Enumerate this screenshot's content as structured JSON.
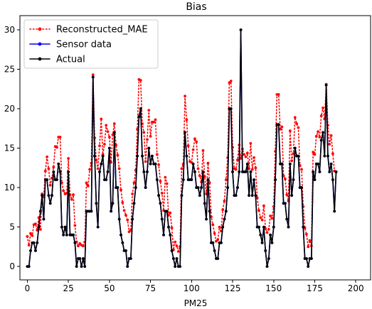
{
  "chart_data": {
    "type": "line",
    "title": "Bias",
    "xlabel": "PM25",
    "ylabel": "",
    "xlim": [
      -4.5,
      209
    ],
    "ylim": [
      -1.7,
      31.8
    ],
    "xticks": [
      0,
      25,
      50,
      75,
      100,
      125,
      150,
      175,
      200
    ],
    "yticks": [
      0,
      5,
      10,
      15,
      20,
      25,
      30
    ],
    "legend": {
      "position": "top-left",
      "entries": [
        "Reconstructed_MAE",
        "Sensor data",
        "Actual"
      ]
    },
    "series": [
      {
        "name": "Reconstructed_MAE",
        "color": "#ff0000",
        "linestyle": "dotted",
        "marker": "circle",
        "x_start": 0,
        "values": [
          3.8,
          2.7,
          4.2,
          3.9,
          5.3,
          5.4,
          4.6,
          6.2,
          4.7,
          9.2,
          8.8,
          12.1,
          13.9,
          12.4,
          10.3,
          11.2,
          12.6,
          15.2,
          15.1,
          16.4,
          16.4,
          10.6,
          9.6,
          9.2,
          9.3,
          13.7,
          9.1,
          8.5,
          9.1,
          5.2,
          3.1,
          2.6,
          2.9,
          2.7,
          2.6,
          3.1,
          10.6,
          10.2,
          12.3,
          13.1,
          24.3,
          16.3,
          13.5,
          12.4,
          15.3,
          18.7,
          14.2,
          15.5,
          17.9,
          17.1,
          16.4,
          13.2,
          16.7,
          18.1,
          15.4,
          14.1,
          12.4,
          9.7,
          8.1,
          7.1,
          6.5,
          5.9,
          4.4,
          4.6,
          9.2,
          10.6,
          12.2,
          17.4,
          23.7,
          23.6,
          18.1,
          17.0,
          13.3,
          16.1,
          19.8,
          16.5,
          18.3,
          18.3,
          18.6,
          14.2,
          12.9,
          10.8,
          9.3,
          7.1,
          11.3,
          10.5,
          6.5,
          6.8,
          4.9,
          2.1,
          3.1,
          2.6,
          1.9,
          2.5,
          12.4,
          13.0,
          21.6,
          18.6,
          15.3,
          13.3,
          13.2,
          14.8,
          16.2,
          15.8,
          12.4,
          11.5,
          10.7,
          14.7,
          11.4,
          9.2,
          13.1,
          10.6,
          6.3,
          5.3,
          4.2,
          3.2,
          3.4,
          5.0,
          4.5,
          7.2,
          8.3,
          11.0,
          13.8,
          23.3,
          23.5,
          15.1,
          12.4,
          12.3,
          13.5,
          15.4,
          13.7,
          14.9,
          14.2,
          13.9,
          14.4,
          12.4,
          15.6,
          12.3,
          13.8,
          12.5,
          8.7,
          7.1,
          6.2,
          5.9,
          7.7,
          4.8,
          4.3,
          4.7,
          6.4,
          6.1,
          7.6,
          14.6,
          21.8,
          21.8,
          17.4,
          17.7,
          11.5,
          11.1,
          9.1,
          8.3,
          17.2,
          13.4,
          14.3,
          18.9,
          18.1,
          17.6,
          12.8,
          12.3,
          7.6,
          4.9,
          4.1,
          2.5,
          3.3,
          2.6,
          14.5,
          14.2,
          16.5,
          17.1,
          16.4,
          19.1,
          20.1,
          18.7,
          23.1,
          17.9,
          15.5,
          16.6,
          14.3,
          12.1,
          12.0
        ]
      },
      {
        "name": "Sensor data",
        "color": "#0000ff",
        "linestyle": "solid",
        "marker": "circle",
        "x_start": 0,
        "values": [
          0,
          0,
          2,
          3,
          3,
          2,
          3,
          5,
          7,
          9,
          6,
          11,
          11,
          9,
          8,
          9,
          12,
          11,
          11,
          13,
          12,
          5,
          4,
          5,
          4,
          12,
          4,
          4,
          4,
          3,
          0,
          1,
          1,
          0,
          1,
          0,
          7,
          7,
          7,
          7,
          24,
          14,
          8,
          5,
          12,
          13,
          14,
          11,
          11,
          12,
          15,
          7,
          8,
          17,
          10,
          10,
          6,
          4,
          3,
          2,
          2,
          0,
          1,
          1,
          6,
          8,
          10,
          14,
          19,
          20,
          14,
          12,
          10,
          12,
          15,
          13,
          14,
          13,
          13,
          11,
          9,
          8,
          6,
          4,
          7,
          7,
          5,
          4,
          2,
          1,
          0,
          1,
          0,
          0,
          9,
          11,
          17,
          14,
          11,
          11,
          11,
          13,
          12,
          10,
          10,
          9,
          10,
          12,
          8,
          6,
          11,
          7,
          3,
          3,
          2,
          1,
          1,
          3,
          3,
          5,
          6,
          7,
          10,
          20,
          20,
          12,
          9,
          9,
          10,
          12,
          30,
          12,
          12,
          12,
          13,
          9,
          12,
          9,
          11,
          9,
          5,
          5,
          4,
          3,
          5,
          2,
          0,
          1,
          4,
          3,
          5,
          11,
          18,
          18,
          13,
          13,
          8,
          8,
          6,
          5,
          13,
          9,
          11,
          15,
          14,
          14,
          10,
          10,
          5,
          1,
          1,
          0,
          1,
          1,
          12,
          11,
          13,
          13,
          12,
          16,
          17,
          14,
          23,
          14,
          12,
          13,
          11,
          7,
          12
        ]
      },
      {
        "name": "Actual",
        "color": "#000000",
        "linestyle": "solid",
        "marker": "circle",
        "x_start": 0,
        "values": [
          0,
          0,
          2,
          3,
          3,
          2,
          3,
          5,
          7,
          9,
          6,
          11,
          11,
          9,
          8,
          9,
          12,
          11,
          11,
          13,
          12,
          5,
          4,
          5,
          4,
          12,
          4,
          4,
          4,
          3,
          0,
          1,
          1,
          0,
          1,
          0,
          7,
          7,
          7,
          7,
          24,
          14,
          8,
          5,
          12,
          13,
          14,
          11,
          11,
          12,
          15,
          7,
          8,
          17,
          10,
          10,
          6,
          4,
          3,
          2,
          2,
          0,
          1,
          1,
          6,
          8,
          10,
          14,
          19,
          20,
          14,
          12,
          10,
          12,
          15,
          13,
          14,
          13,
          13,
          11,
          9,
          8,
          6,
          4,
          7,
          7,
          5,
          4,
          2,
          1,
          0,
          1,
          0,
          0,
          9,
          11,
          17,
          14,
          11,
          11,
          11,
          13,
          12,
          10,
          10,
          9,
          10,
          12,
          8,
          6,
          11,
          7,
          3,
          3,
          2,
          1,
          1,
          3,
          3,
          5,
          6,
          7,
          10,
          20,
          20,
          12,
          9,
          9,
          10,
          12,
          30,
          12,
          12,
          12,
          13,
          9,
          12,
          9,
          11,
          9,
          5,
          5,
          4,
          3,
          5,
          2,
          0,
          1,
          4,
          3,
          5,
          11,
          18,
          18,
          13,
          13,
          8,
          8,
          6,
          5,
          13,
          9,
          11,
          15,
          14,
          14,
          10,
          10,
          5,
          1,
          1,
          0,
          1,
          1,
          12,
          11,
          13,
          13,
          12,
          16,
          17,
          14,
          23,
          14,
          12,
          13,
          11,
          7,
          12
        ]
      }
    ]
  }
}
